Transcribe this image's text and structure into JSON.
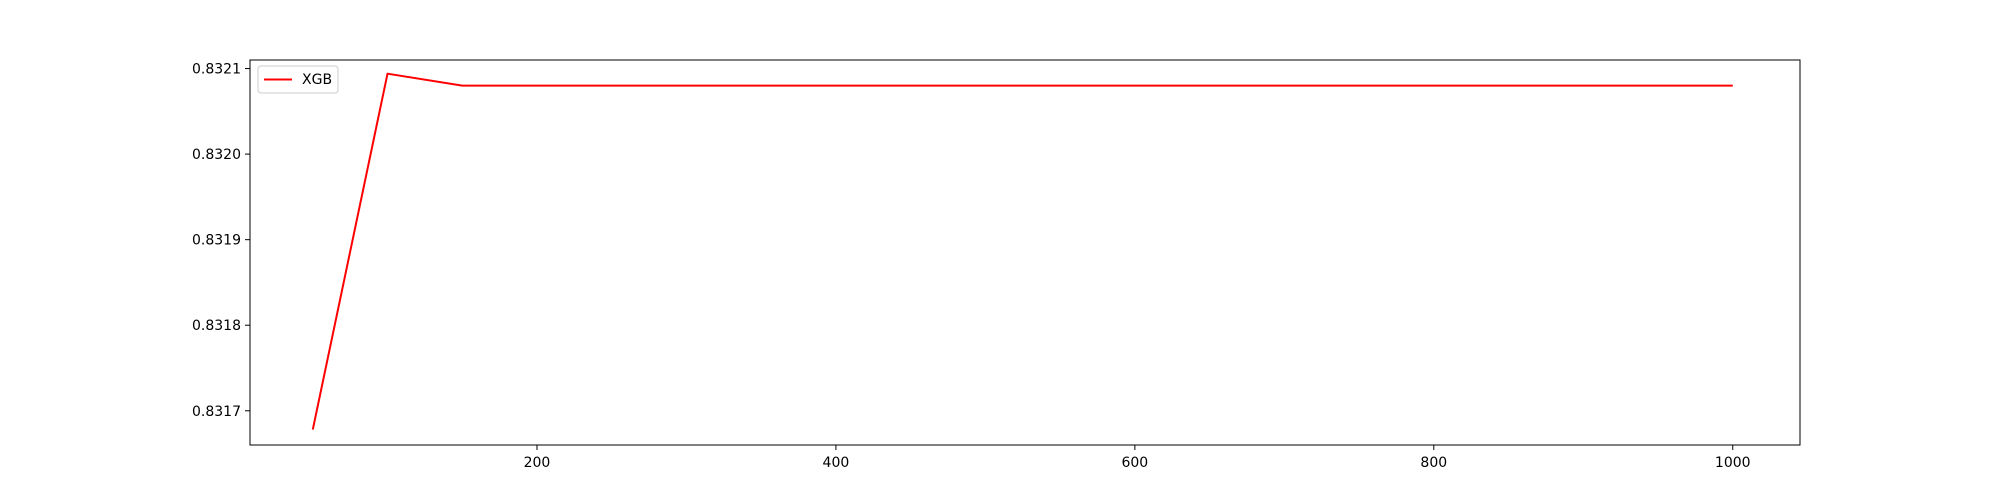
{
  "chart_data": {
    "type": "line",
    "title": "",
    "xlabel": "",
    "ylabel": "",
    "xlim": [
      8,
      1045
    ],
    "ylim": [
      0.83166,
      0.83211
    ],
    "xticks": [
      200,
      400,
      600,
      800,
      1000
    ],
    "xtick_labels": [
      "200",
      "400",
      "600",
      "800",
      "1000"
    ],
    "yticks": [
      0.8317,
      0.8318,
      0.8319,
      0.832,
      0.8321
    ],
    "ytick_labels": [
      "0.8317",
      "0.8318",
      "0.8319",
      "0.8320",
      "0.8321"
    ],
    "grid": false,
    "legend": "upper left",
    "series": [
      {
        "name": "XGB",
        "color": "#ff0000",
        "x": [
          50,
          100,
          150,
          200,
          250,
          300,
          350,
          400,
          450,
          500,
          550,
          600,
          650,
          700,
          750,
          800,
          850,
          900,
          950,
          1000
        ],
        "y": [
          0.831678,
          0.832094,
          0.83208,
          0.83208,
          0.83208,
          0.83208,
          0.83208,
          0.83208,
          0.83208,
          0.83208,
          0.83208,
          0.83208,
          0.83208,
          0.83208,
          0.83208,
          0.83208,
          0.83208,
          0.83208,
          0.83208,
          0.83208
        ]
      }
    ]
  }
}
